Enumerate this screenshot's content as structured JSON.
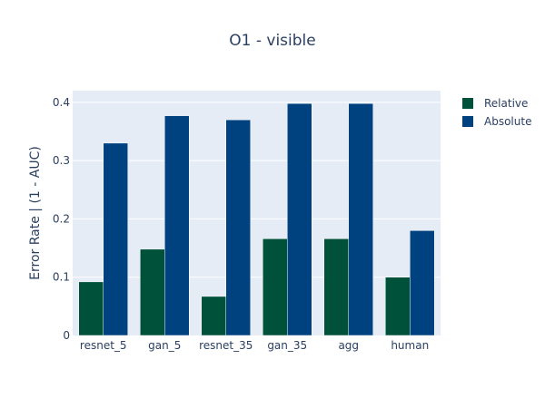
{
  "chart_data": {
    "type": "bar",
    "title": "O1 - visible",
    "xlabel": "",
    "ylabel": "Error Rate | (1 - AUC)",
    "categories": [
      "resnet_5",
      "gan_5",
      "resnet_35",
      "gan_35",
      "agg",
      "human"
    ],
    "series": [
      {
        "name": "Relative",
        "color": "#00513a",
        "values": [
          0.092,
          0.148,
          0.067,
          0.166,
          0.166,
          0.1
        ]
      },
      {
        "name": "Absolute",
        "color": "#004280",
        "values": [
          0.33,
          0.377,
          0.37,
          0.398,
          0.398,
          0.18
        ]
      }
    ],
    "ylim": [
      0,
      0.42
    ],
    "yticks": [
      0,
      0.1,
      0.2,
      0.3,
      0.4
    ],
    "ytick_labels": [
      "0",
      "0.1",
      "0.2",
      "0.3",
      "0.4"
    ],
    "grid": true,
    "legend_position": "top-right",
    "plot_background": "#e5ecf6"
  }
}
